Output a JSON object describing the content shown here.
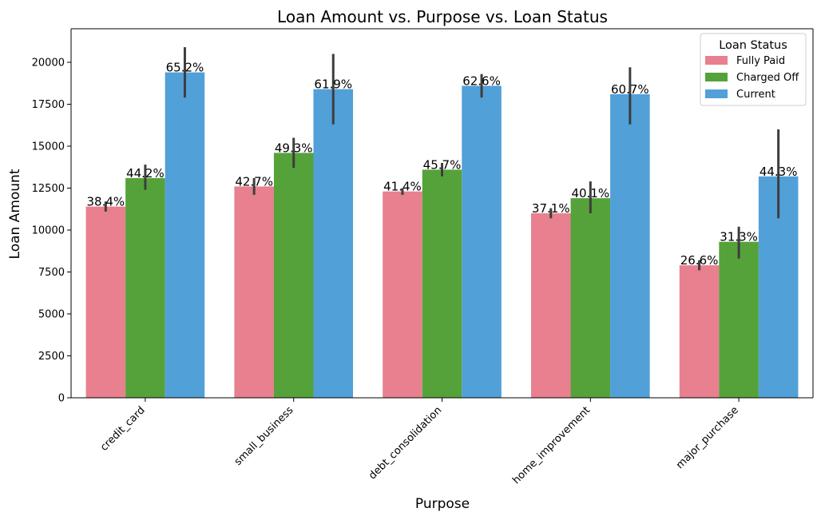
{
  "chart_data": {
    "type": "bar",
    "title": "Loan Amount vs. Purpose vs. Loan Status",
    "xlabel": "Purpose",
    "ylabel": "Loan Amount",
    "ylim": [
      0,
      22000
    ],
    "yticks": [
      0,
      2500,
      5000,
      7500,
      10000,
      12500,
      15000,
      17500,
      20000
    ],
    "categories": [
      "credit_card",
      "small_business",
      "debt_consolidation",
      "home_improvement",
      "major_purchase"
    ],
    "legend": {
      "title": "Loan Status",
      "placement": "top-right"
    },
    "grid": false,
    "series": [
      {
        "name": "Fully Paid",
        "color": "#e8808f",
        "values": [
          11400,
          12600,
          12300,
          11000,
          7900
        ],
        "err_low": [
          11100,
          12100,
          12100,
          10700,
          7600
        ],
        "err_high": [
          11700,
          13100,
          12500,
          11300,
          8200
        ],
        "labels": [
          "38.4%",
          "42.7%",
          "41.4%",
          "37.1%",
          "26.6%"
        ]
      },
      {
        "name": "Charged Off",
        "color": "#55a23b",
        "values": [
          13100,
          14600,
          13600,
          11900,
          9300
        ],
        "err_low": [
          12400,
          13700,
          13200,
          11000,
          8300
        ],
        "err_high": [
          13900,
          15500,
          14000,
          12900,
          10200
        ],
        "labels": [
          "44.2%",
          "49.3%",
          "45.7%",
          "40.1%",
          "31.3%"
        ]
      },
      {
        "name": "Current",
        "color": "#51a0d8",
        "values": [
          19400,
          18400,
          18600,
          18100,
          13200
        ],
        "err_low": [
          17900,
          16300,
          17900,
          16300,
          10700
        ],
        "err_high": [
          20900,
          20500,
          19300,
          19700,
          16000
        ],
        "labels": [
          "65.2%",
          "61.9%",
          "62.6%",
          "60.7%",
          "44.3%"
        ]
      }
    ]
  }
}
